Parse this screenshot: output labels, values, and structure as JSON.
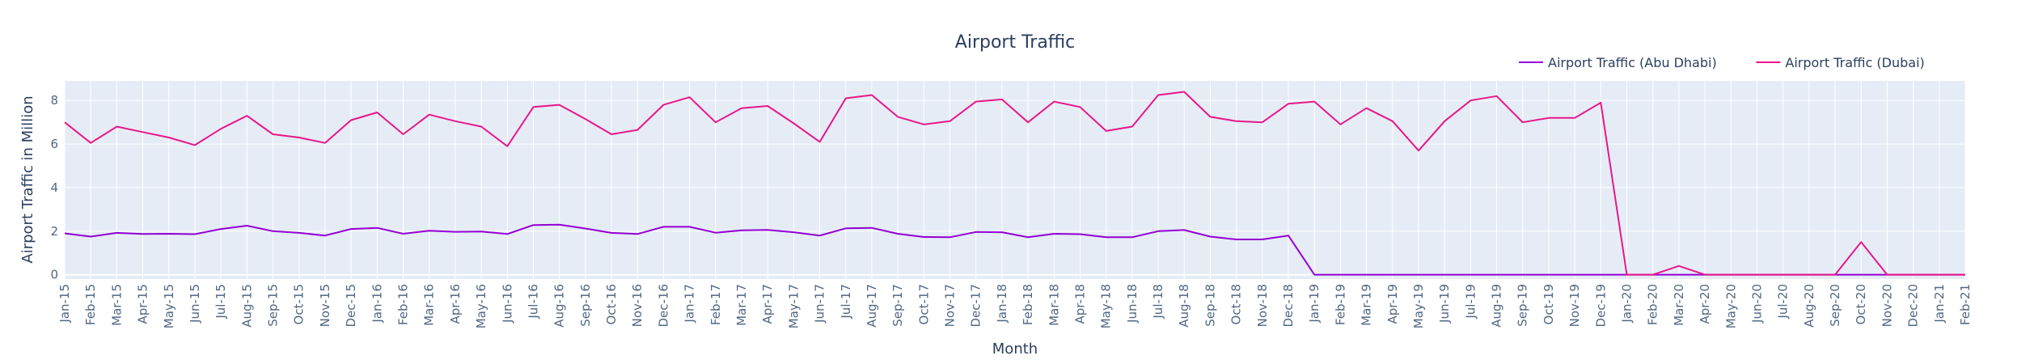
{
  "chart_data": {
    "type": "line",
    "title": "Airport Traffic",
    "xlabel": "Month",
    "ylabel": "Airport Traffic in Million",
    "x": [
      "Jan-15",
      "Feb-15",
      "Mar-15",
      "Apr-15",
      "May-15",
      "Jun-15",
      "Jul-15",
      "Aug-15",
      "Sep-15",
      "Oct-15",
      "Nov-15",
      "Dec-15",
      "Jan-16",
      "Feb-16",
      "Mar-16",
      "Apr-16",
      "May-16",
      "Jun-16",
      "Jul-16",
      "Aug-16",
      "Sep-16",
      "Oct-16",
      "Nov-16",
      "Dec-16",
      "Jan-17",
      "Feb-17",
      "Mar-17",
      "Apr-17",
      "May-17",
      "Jun-17",
      "Jul-17",
      "Aug-17",
      "Sep-17",
      "Oct-17",
      "Nov-17",
      "Dec-17",
      "Jan-18",
      "Feb-18",
      "Mar-18",
      "Apr-18",
      "May-18",
      "Jun-18",
      "Jul-18",
      "Aug-18",
      "Sep-18",
      "Oct-18",
      "Nov-18",
      "Dec-18",
      "Jan-19",
      "Feb-19",
      "Mar-19",
      "Apr-19",
      "May-19",
      "Jun-19",
      "Jul-19",
      "Aug-19",
      "Sep-19",
      "Oct-19",
      "Nov-19",
      "Dec-19",
      "Jan-20",
      "Feb-20",
      "Mar-20",
      "Apr-20",
      "May-20",
      "Jun-20",
      "Jul-20",
      "Aug-20",
      "Sep-20",
      "Oct-20",
      "Nov-20",
      "Dec-20",
      "Jan-21",
      "Feb-21"
    ],
    "ylim": [
      -0.2,
      8.9
    ],
    "yticks": [
      0,
      2,
      4,
      6,
      8
    ],
    "grid": true,
    "legend_position": "top-right",
    "series": [
      {
        "name": "Airport Traffic (Abu Dhabi)",
        "color": "#9400d3",
        "values": [
          1.9,
          1.75,
          1.92,
          1.87,
          1.88,
          1.86,
          2.1,
          2.25,
          2.0,
          1.92,
          1.8,
          2.1,
          2.15,
          1.88,
          2.02,
          1.97,
          1.98,
          1.87,
          2.28,
          2.3,
          2.12,
          1.92,
          1.87,
          2.2,
          2.2,
          1.93,
          2.04,
          2.06,
          1.95,
          1.8,
          2.13,
          2.15,
          1.88,
          1.73,
          1.72,
          1.96,
          1.95,
          1.72,
          1.88,
          1.86,
          1.72,
          1.72,
          2.0,
          2.05,
          1.75,
          1.62,
          1.62,
          1.8,
          0,
          0,
          0,
          0,
          0,
          0,
          0,
          0,
          0,
          0,
          0,
          0,
          0,
          0,
          0,
          0,
          0,
          0,
          0,
          0,
          0,
          0,
          0,
          0,
          0,
          0
        ]
      },
      {
        "name": "Airport Traffic (Dubai)",
        "color": "#e8178a",
        "values": [
          7.0,
          6.05,
          6.8,
          6.55,
          6.3,
          5.95,
          6.7,
          7.3,
          6.45,
          6.3,
          6.05,
          7.1,
          7.45,
          6.45,
          7.35,
          7.05,
          6.8,
          5.9,
          7.7,
          7.8,
          7.15,
          6.45,
          6.65,
          7.8,
          8.15,
          7.0,
          7.65,
          7.75,
          6.95,
          6.1,
          8.1,
          8.25,
          7.25,
          6.9,
          7.05,
          7.95,
          8.05,
          7.0,
          7.95,
          7.7,
          6.6,
          6.8,
          8.25,
          8.4,
          7.25,
          7.05,
          7.0,
          7.85,
          7.95,
          6.9,
          7.65,
          7.05,
          5.7,
          7.05,
          8.0,
          8.2,
          7.0,
          7.2,
          7.2,
          7.9,
          0,
          0,
          0.4,
          0,
          0,
          0,
          0,
          0,
          0,
          1.5,
          0,
          0,
          0,
          0
        ]
      }
    ]
  }
}
